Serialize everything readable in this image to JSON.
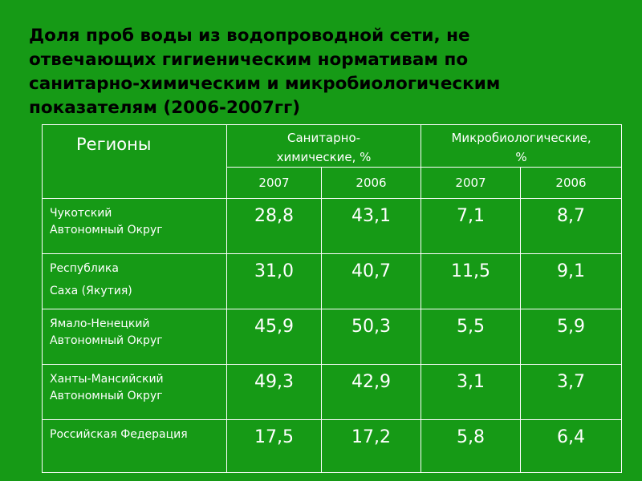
{
  "title": "Доля проб воды из водопроводной сети, не отвечающих гигиеническим нормативам по санитарно-химическим и микробиологическим показателям   (2006-2007гг)",
  "title_lines": [
    "Доля проб воды из водопроводной сети, не",
    "отвечающих гигиеническим нормативам по",
    "санитарно-химическим и микробиологическим",
    "показателям   (2006-2007гг)"
  ],
  "table": {
    "header_region": "Регионы",
    "group1_line1": "Санитарно-",
    "group1_line2": "химические, %",
    "group2_line1": "Микробиологические,",
    "group2_line2": "%",
    "years": [
      "2007",
      "2006",
      "2007",
      "2006"
    ],
    "rows": [
      {
        "name_line1": "Чукотский",
        "name_line2": "Автономный Округ",
        "values": [
          "28,8",
          "43,1",
          "7,1",
          "8,7"
        ]
      },
      {
        "name_line1": "Республика",
        "name_line2": "Саха (Якутия)",
        "values": [
          "31,0",
          "40,7",
          "11,5",
          "9,1"
        ]
      },
      {
        "name_line1": "Ямало-Ненецкий",
        "name_line2": "Автономный Округ",
        "values": [
          "45,9",
          "50,3",
          "5,5",
          "5,9"
        ]
      },
      {
        "name_line1": "Ханты-Мансийский",
        "name_line2": "Автономный Округ",
        "values": [
          "49,3",
          "42,9",
          "3,1",
          "3,7"
        ]
      },
      {
        "name_line1": "Российская Федерация",
        "name_line2": "",
        "values": [
          "17,5",
          "17,2",
          "5,8",
          "6,4"
        ]
      }
    ]
  },
  "colors": {
    "background": "#169a16",
    "title": "#000000",
    "text": "#ffffff",
    "grid": "#ffffff"
  }
}
